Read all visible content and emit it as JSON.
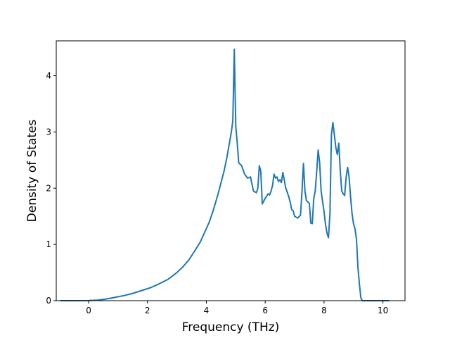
{
  "chart_data": {
    "type": "line",
    "title": "",
    "xlabel": "Frequency (THz)",
    "ylabel": "Density of States",
    "xlim": [
      -1.1,
      10.75
    ],
    "ylim": [
      0,
      4.62
    ],
    "xticks": [
      0,
      2,
      4,
      6,
      8,
      10
    ],
    "xtick_labels": [
      "0",
      "2",
      "4",
      "6",
      "8",
      "10"
    ],
    "yticks": [
      0,
      1,
      2,
      3,
      4
    ],
    "ytick_labels": [
      "0",
      "1",
      "2",
      "3",
      "4"
    ],
    "grid": false,
    "legend": "none",
    "series": [
      {
        "color": "#1f77b4",
        "x": [
          -0.95,
          -0.5,
          0.0,
          0.3,
          0.6,
          0.9,
          1.2,
          1.5,
          1.8,
          2.1,
          2.4,
          2.7,
          3.0,
          3.2,
          3.4,
          3.6,
          3.8,
          4.0,
          4.1,
          4.2,
          4.3,
          4.4,
          4.5,
          4.6,
          4.7,
          4.8,
          4.85,
          4.9,
          4.95,
          5.0,
          5.05,
          5.1,
          5.2,
          5.3,
          5.4,
          5.5,
          5.6,
          5.7,
          5.75,
          5.8,
          5.85,
          5.9,
          6.0,
          6.1,
          6.15,
          6.2,
          6.25,
          6.3,
          6.35,
          6.4,
          6.45,
          6.5,
          6.55,
          6.6,
          6.7,
          6.8,
          6.85,
          6.9,
          6.95,
          7.0,
          7.1,
          7.2,
          7.25,
          7.3,
          7.35,
          7.4,
          7.5,
          7.55,
          7.6,
          7.65,
          7.7,
          7.75,
          7.8,
          7.85,
          7.9,
          8.0,
          8.05,
          8.1,
          8.15,
          8.2,
          8.25,
          8.3,
          8.35,
          8.4,
          8.45,
          8.5,
          8.55,
          8.6,
          8.65,
          8.7,
          8.75,
          8.8,
          8.85,
          8.9,
          8.95,
          9.0,
          9.05,
          9.1,
          9.15,
          9.2,
          9.25,
          9.3,
          9.5,
          10.0,
          10.2
        ],
        "y": [
          0,
          0,
          0.002,
          0.01,
          0.03,
          0.06,
          0.09,
          0.13,
          0.18,
          0.23,
          0.3,
          0.38,
          0.5,
          0.6,
          0.72,
          0.88,
          1.05,
          1.28,
          1.4,
          1.55,
          1.72,
          1.9,
          2.1,
          2.3,
          2.55,
          2.85,
          3.0,
          3.2,
          4.47,
          3.1,
          2.8,
          2.45,
          2.4,
          2.25,
          2.18,
          2.2,
          1.95,
          1.92,
          2.0,
          2.4,
          2.3,
          1.72,
          1.82,
          1.9,
          1.88,
          1.95,
          2.05,
          2.25,
          2.18,
          2.2,
          2.12,
          2.15,
          2.1,
          2.28,
          2.0,
          1.85,
          1.75,
          1.62,
          1.6,
          1.5,
          1.47,
          1.52,
          1.95,
          2.44,
          1.95,
          1.78,
          1.73,
          1.38,
          1.37,
          1.82,
          1.95,
          2.3,
          2.68,
          2.45,
          1.95,
          1.58,
          1.35,
          1.2,
          1.12,
          1.55,
          2.95,
          3.17,
          2.95,
          2.72,
          2.6,
          2.8,
          2.32,
          1.95,
          1.9,
          1.87,
          2.2,
          2.37,
          2.2,
          1.85,
          1.55,
          1.37,
          1.28,
          1.1,
          0.6,
          0.3,
          0.05,
          0,
          0,
          0,
          0
        ]
      }
    ]
  }
}
